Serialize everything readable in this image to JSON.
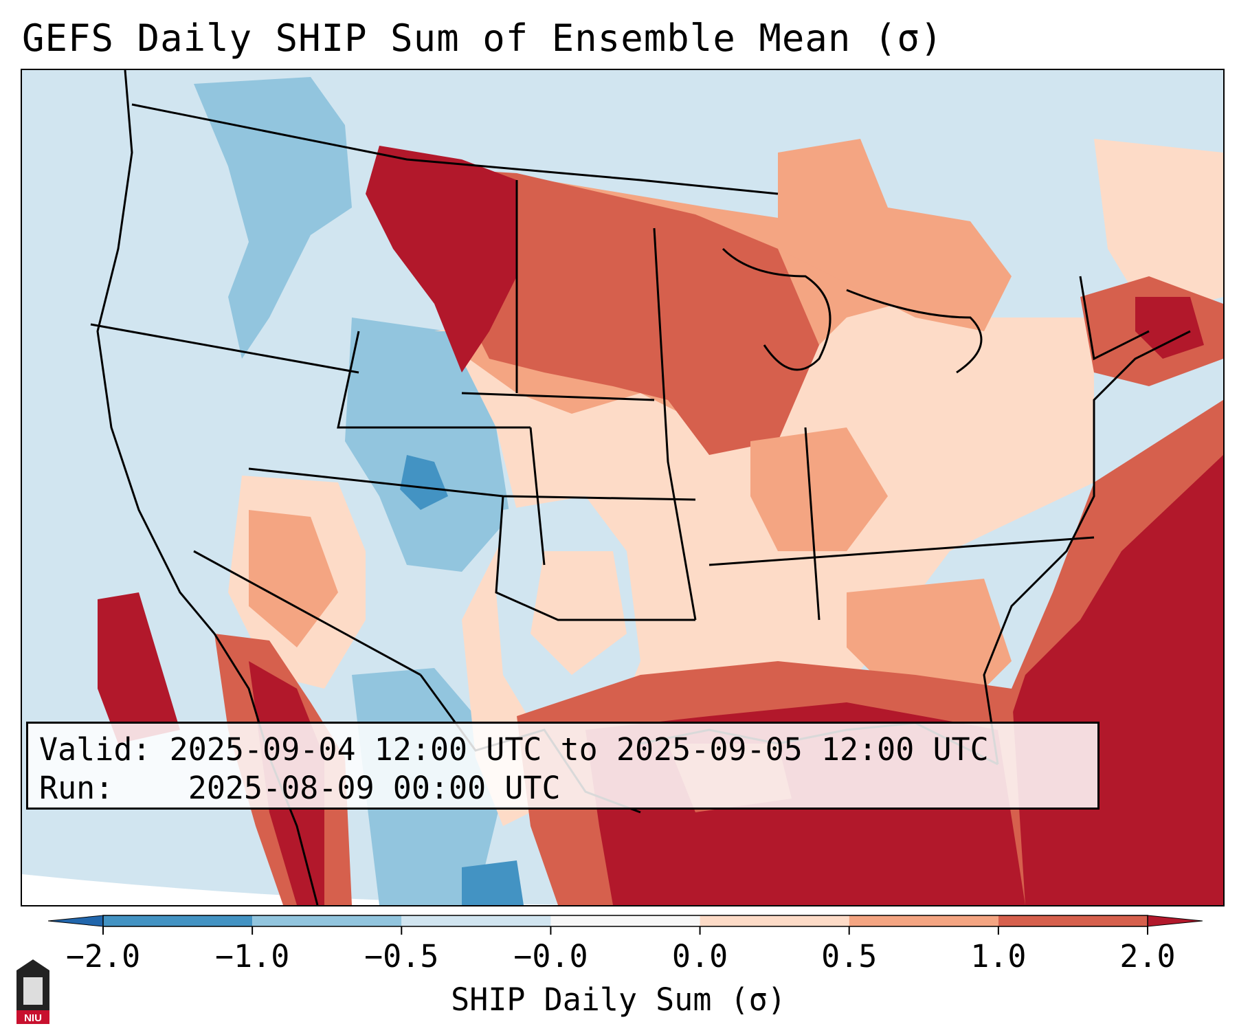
{
  "title": "GEFS Daily SHIP Sum of Ensemble Mean (σ)",
  "info_box": {
    "valid_label": "Valid:",
    "valid_value": "2025-09-04 12:00 UTC to 2025-09-05 12:00 UTC",
    "run_label": "Run:",
    "run_value": "2025-08-09 00:00 UTC"
  },
  "colorbar": {
    "label": "SHIP Daily Sum (σ)",
    "ticks": [
      "−2.0",
      "−1.0",
      "−0.5",
      "−0.0",
      "0.0",
      "0.5",
      "1.0",
      "2.0"
    ],
    "bins": [
      {
        "range": "< -2.0",
        "color": "#2166ac"
      },
      {
        "range": "-2.0 to -1.0",
        "color": "#4393c3"
      },
      {
        "range": "-1.0 to -0.5",
        "color": "#92c5de"
      },
      {
        "range": "-0.5 to -0.0",
        "color": "#d1e5f0"
      },
      {
        "range": "-0.0 to 0.0",
        "color": "#f7f7f7"
      },
      {
        "range": "0.0 to 0.5",
        "color": "#fddbc7"
      },
      {
        "range": "0.5 to 1.0",
        "color": "#f4a582"
      },
      {
        "range": "1.0 to 2.0",
        "color": "#d6604d"
      },
      {
        "range": "> 2.0",
        "color": "#b2182b"
      }
    ]
  },
  "logo": {
    "text": "NIU"
  },
  "regions": {
    "pacific_northwest": "-0.5 to -0.0",
    "northern_rockies": "-1.0 to -0.5",
    "montana_dakotas": "1.0 to > 2.0",
    "upper_midwest": "1.0 to 2.0",
    "southwest_colorado": "-1.0 to -0.5",
    "gulf_of_mexico": "> 2.0",
    "western_atlantic": "1.0 to > 2.0",
    "northeast": "0.5 to > 2.0"
  }
}
